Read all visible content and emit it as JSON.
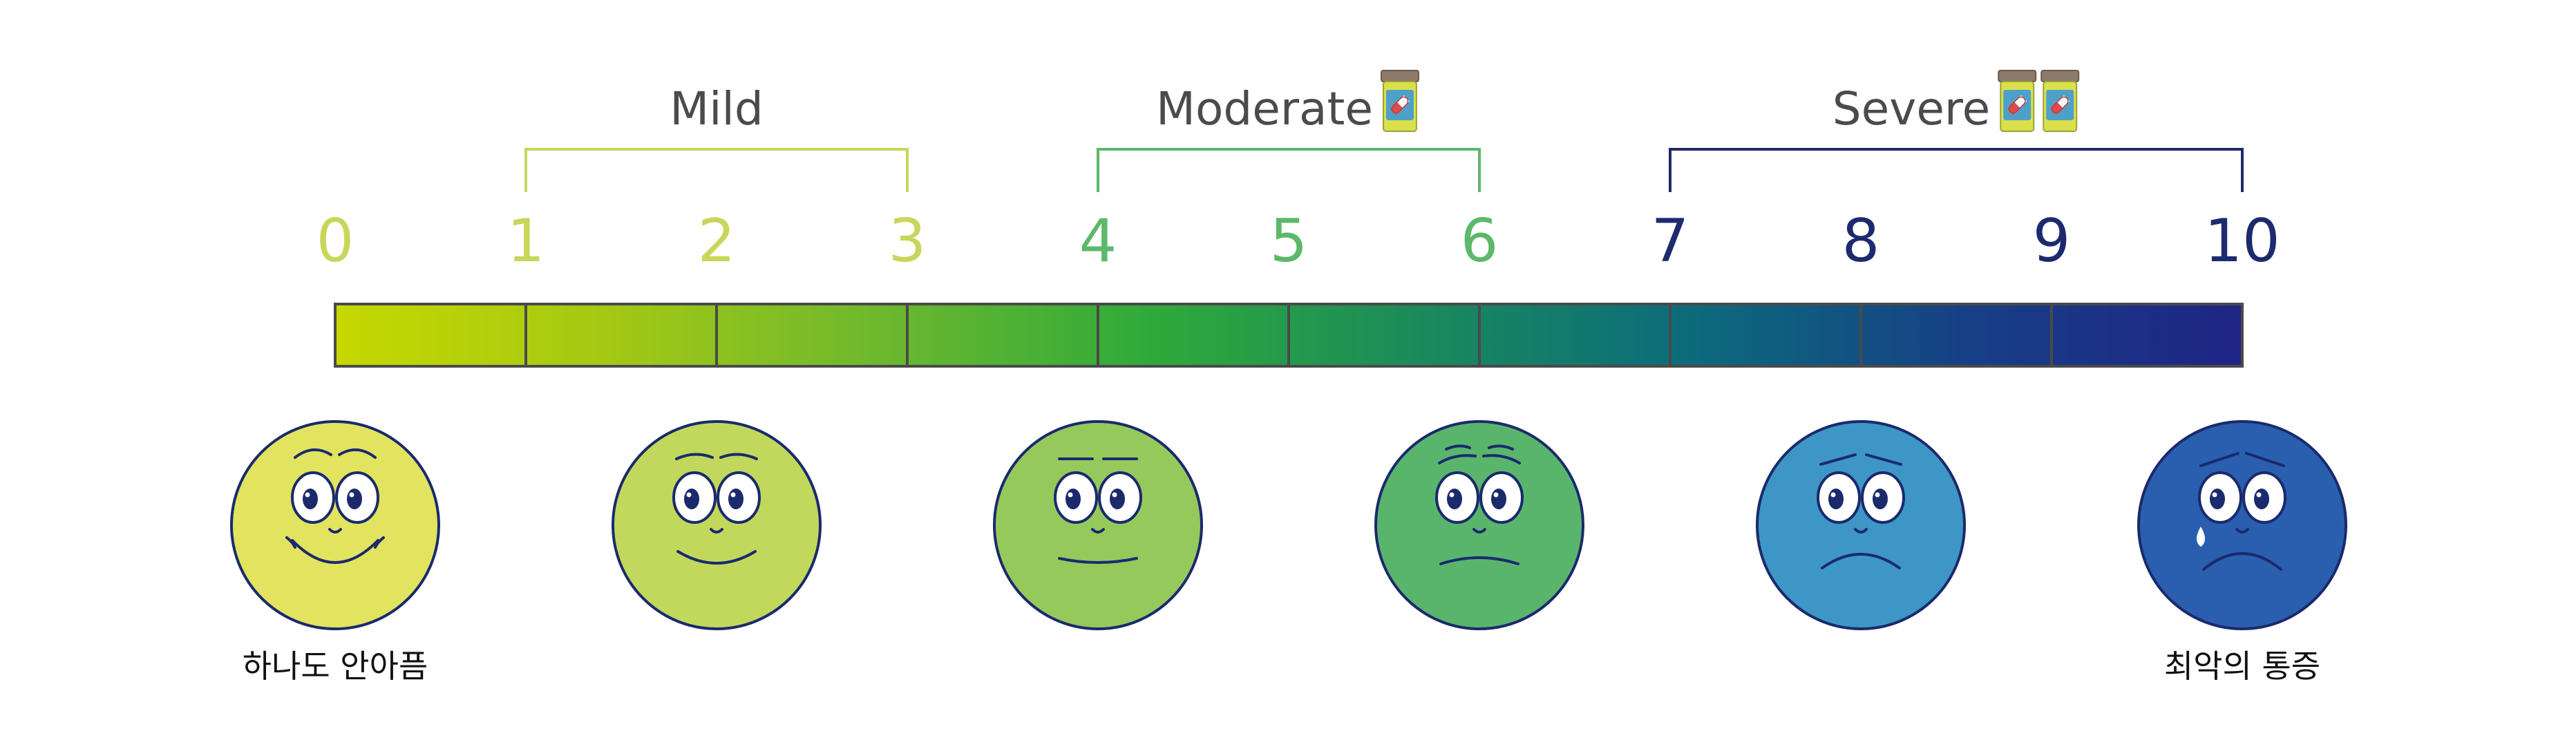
{
  "categories": [
    {
      "label": "Mild",
      "from": 1,
      "to": 3,
      "color": "#c5d65c",
      "pills": 0
    },
    {
      "label": "Moderate",
      "from": 4,
      "to": 6,
      "color": "#5cb86a",
      "pills": 1
    },
    {
      "label": "Severe",
      "from": 7,
      "to": 10,
      "color": "#1f2a6b",
      "pills": 2
    }
  ],
  "scale": {
    "numbers": [
      "0",
      "1",
      "2",
      "3",
      "4",
      "5",
      "6",
      "7",
      "8",
      "9",
      "10"
    ],
    "number_colors": [
      "#c8d65a",
      "#c8d65a",
      "#c8d65a",
      "#c8d65a",
      "#5cb86a",
      "#5cb86a",
      "#5cb86a",
      "#1e2a6e",
      "#1e2a6e",
      "#1e2a6e",
      "#1e2a6e"
    ],
    "gradient": [
      "#c6d800",
      "#a4c814",
      "#6db82e",
      "#2eaa3a",
      "#1a8a5c",
      "#0c6a7c",
      "#173f86",
      "#1f2485"
    ],
    "border_color": "#4a4a4a"
  },
  "faces": [
    {
      "at": 0,
      "fill": "#e2e35f",
      "mood": "very-happy",
      "caption": "하나도 안아픔"
    },
    {
      "at": 2,
      "fill": "#c1d85c",
      "mood": "happy",
      "caption": ""
    },
    {
      "at": 4,
      "fill": "#95c95c",
      "mood": "slight-smile",
      "caption": ""
    },
    {
      "at": 6,
      "fill": "#5ab56c",
      "mood": "worried",
      "caption": ""
    },
    {
      "at": 8,
      "fill": "#3d96c6",
      "mood": "sad",
      "caption": ""
    },
    {
      "at": 10,
      "fill": "#2a5faf",
      "mood": "crying",
      "caption": "최악의 통증"
    }
  ],
  "icons": {
    "pill_bottle": "pill-bottle-icon"
  }
}
